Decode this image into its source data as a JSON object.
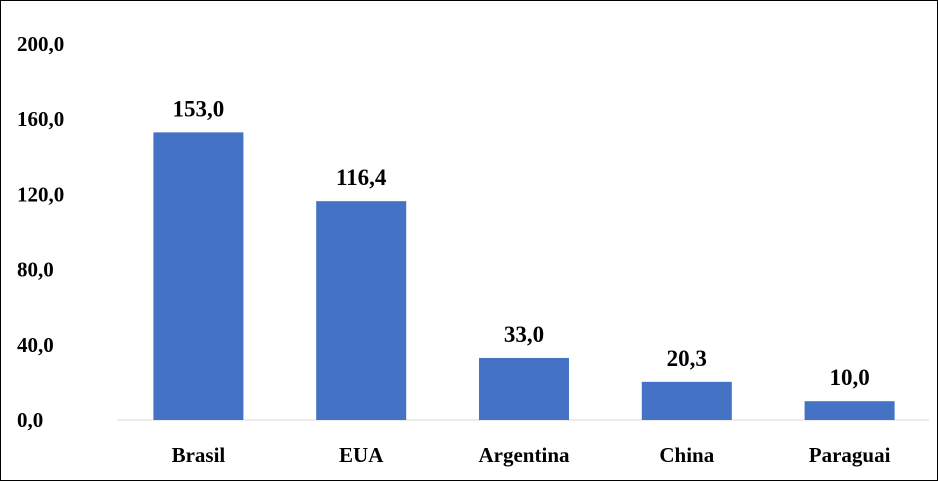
{
  "chart_data": {
    "type": "bar",
    "categories": [
      "Brasil",
      "EUA",
      "Argentina",
      "China",
      "Paraguai"
    ],
    "values": [
      153.0,
      116.4,
      33.0,
      20.3,
      10.0
    ],
    "data_labels": [
      "153,0",
      "116,4",
      "33,0",
      "20,3",
      "10,0"
    ],
    "title": "",
    "xlabel": "",
    "ylabel": "",
    "ylim": [
      0,
      200
    ],
    "yticks": [
      {
        "value": 0,
        "label": "0,0"
      },
      {
        "value": 40,
        "label": "40,0"
      },
      {
        "value": 80,
        "label": "80,0"
      },
      {
        "value": 120,
        "label": "120,0"
      },
      {
        "value": 160,
        "label": "160,0"
      },
      {
        "value": 200,
        "label": "200,0"
      }
    ],
    "grid": false,
    "legend": "none",
    "bar_color": "#4472C4"
  }
}
